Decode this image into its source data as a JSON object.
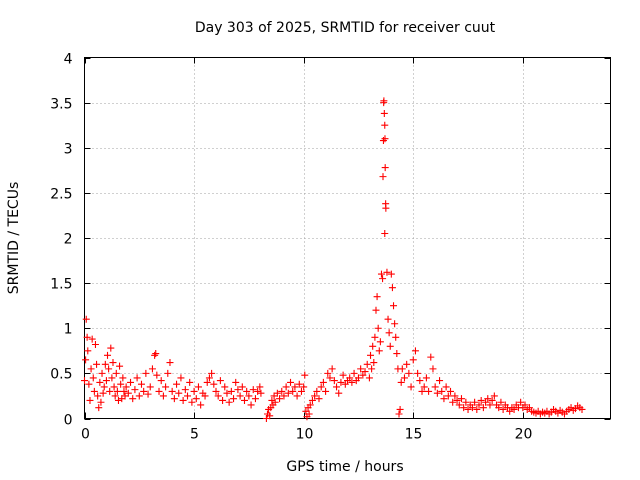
{
  "chart_data": {
    "type": "scatter",
    "title": "Day 303 of 2025, SRMTID for receiver cuut",
    "xlabel": "GPS time / hours",
    "ylabel": "SRMTID / TECUs",
    "xlim": [
      0,
      24
    ],
    "ylim": [
      0,
      4
    ],
    "xticks": [
      0,
      5,
      10,
      15,
      20
    ],
    "xtick_labels": [
      "0",
      "5",
      "10",
      "15",
      "20"
    ],
    "yticks": [
      0,
      0.5,
      1,
      1.5,
      2,
      2.5,
      3,
      3.5,
      4
    ],
    "ytick_labels": [
      "0",
      "0.5",
      "1",
      "1.5",
      "2",
      "2.5",
      "3",
      "3.5",
      "4"
    ],
    "grid": true,
    "marker": "plus",
    "color": "#ff0000",
    "series": [
      {
        "name": "SRMTID",
        "points": [
          [
            0.0,
            0.42
          ],
          [
            0.05,
            0.65
          ],
          [
            0.08,
            1.1
          ],
          [
            0.12,
            0.9
          ],
          [
            0.15,
            0.75
          ],
          [
            0.2,
            0.38
          ],
          [
            0.25,
            0.2
          ],
          [
            0.3,
            0.55
          ],
          [
            0.35,
            0.88
          ],
          [
            0.4,
            0.45
          ],
          [
            0.45,
            0.3
          ],
          [
            0.5,
            0.82
          ],
          [
            0.55,
            0.6
          ],
          [
            0.6,
            0.25
          ],
          [
            0.65,
            0.12
          ],
          [
            0.7,
            0.4
          ],
          [
            0.75,
            0.18
          ],
          [
            0.8,
            0.5
          ],
          [
            0.85,
            0.28
          ],
          [
            0.9,
            0.35
          ],
          [
            0.95,
            0.6
          ],
          [
            1.0,
            0.42
          ],
          [
            1.05,
            0.7
          ],
          [
            1.1,
            0.55
          ],
          [
            1.15,
            0.3
          ],
          [
            1.2,
            0.78
          ],
          [
            1.25,
            0.45
          ],
          [
            1.3,
            0.62
          ],
          [
            1.35,
            0.35
          ],
          [
            1.4,
            0.25
          ],
          [
            1.45,
            0.5
          ],
          [
            1.5,
            0.3
          ],
          [
            1.55,
            0.2
          ],
          [
            1.6,
            0.58
          ],
          [
            1.65,
            0.38
          ],
          [
            1.7,
            0.22
          ],
          [
            1.75,
            0.45
          ],
          [
            1.8,
            0.3
          ],
          [
            1.85,
            0.25
          ],
          [
            1.9,
            0.35
          ],
          [
            2.0,
            0.28
          ],
          [
            2.1,
            0.4
          ],
          [
            2.2,
            0.22
          ],
          [
            2.3,
            0.32
          ],
          [
            2.4,
            0.45
          ],
          [
            2.5,
            0.25
          ],
          [
            2.6,
            0.38
          ],
          [
            2.7,
            0.3
          ],
          [
            2.8,
            0.5
          ],
          [
            2.9,
            0.27
          ],
          [
            3.0,
            0.35
          ],
          [
            3.1,
            0.55
          ],
          [
            3.2,
            0.7
          ],
          [
            3.25,
            0.72
          ],
          [
            3.3,
            0.48
          ],
          [
            3.4,
            0.3
          ],
          [
            3.5,
            0.42
          ],
          [
            3.6,
            0.25
          ],
          [
            3.7,
            0.35
          ],
          [
            3.8,
            0.5
          ],
          [
            3.9,
            0.62
          ],
          [
            4.0,
            0.3
          ],
          [
            4.1,
            0.22
          ],
          [
            4.2,
            0.38
          ],
          [
            4.3,
            0.28
          ],
          [
            4.4,
            0.45
          ],
          [
            4.5,
            0.2
          ],
          [
            4.6,
            0.32
          ],
          [
            4.7,
            0.25
          ],
          [
            4.8,
            0.4
          ],
          [
            4.9,
            0.18
          ],
          [
            5.0,
            0.3
          ],
          [
            5.1,
            0.22
          ],
          [
            5.2,
            0.35
          ],
          [
            5.3,
            0.15
          ],
          [
            5.4,
            0.28
          ],
          [
            5.5,
            0.25
          ],
          [
            5.6,
            0.4
          ],
          [
            5.7,
            0.45
          ],
          [
            5.8,
            0.5
          ],
          [
            5.9,
            0.38
          ],
          [
            6.0,
            0.3
          ],
          [
            6.1,
            0.25
          ],
          [
            6.2,
            0.42
          ],
          [
            6.3,
            0.2
          ],
          [
            6.4,
            0.35
          ],
          [
            6.5,
            0.28
          ],
          [
            6.6,
            0.18
          ],
          [
            6.7,
            0.3
          ],
          [
            6.8,
            0.22
          ],
          [
            6.9,
            0.4
          ],
          [
            7.0,
            0.32
          ],
          [
            7.1,
            0.25
          ],
          [
            7.2,
            0.35
          ],
          [
            7.3,
            0.2
          ],
          [
            7.4,
            0.3
          ],
          [
            7.5,
            0.25
          ],
          [
            7.6,
            0.15
          ],
          [
            7.7,
            0.32
          ],
          [
            7.8,
            0.22
          ],
          [
            7.9,
            0.3
          ],
          [
            8.0,
            0.35
          ],
          [
            8.05,
            0.28
          ],
          [
            8.3,
            0.0
          ],
          [
            8.35,
            0.05
          ],
          [
            8.4,
            0.1
          ],
          [
            8.45,
            0.03
          ],
          [
            8.5,
            0.12
          ],
          [
            8.55,
            0.2
          ],
          [
            8.6,
            0.15
          ],
          [
            8.65,
            0.25
          ],
          [
            8.7,
            0.18
          ],
          [
            8.8,
            0.28
          ],
          [
            8.9,
            0.22
          ],
          [
            9.0,
            0.3
          ],
          [
            9.1,
            0.25
          ],
          [
            9.2,
            0.35
          ],
          [
            9.3,
            0.28
          ],
          [
            9.4,
            0.4
          ],
          [
            9.5,
            0.3
          ],
          [
            9.6,
            0.35
          ],
          [
            9.7,
            0.25
          ],
          [
            9.8,
            0.38
          ],
          [
            9.9,
            0.3
          ],
          [
            10.0,
            0.35
          ],
          [
            10.05,
            0.48
          ],
          [
            10.1,
            0.08
          ],
          [
            10.15,
            0.02
          ],
          [
            10.2,
            0.12
          ],
          [
            10.25,
            0.05
          ],
          [
            10.3,
            0.15
          ],
          [
            10.4,
            0.2
          ],
          [
            10.5,
            0.25
          ],
          [
            10.6,
            0.3
          ],
          [
            10.7,
            0.22
          ],
          [
            10.8,
            0.35
          ],
          [
            10.9,
            0.4
          ],
          [
            11.0,
            0.3
          ],
          [
            11.1,
            0.5
          ],
          [
            11.2,
            0.45
          ],
          [
            11.3,
            0.55
          ],
          [
            11.4,
            0.42
          ],
          [
            11.5,
            0.35
          ],
          [
            11.6,
            0.28
          ],
          [
            11.7,
            0.4
          ],
          [
            11.8,
            0.48
          ],
          [
            11.9,
            0.38
          ],
          [
            12.0,
            0.42
          ],
          [
            12.1,
            0.45
          ],
          [
            12.2,
            0.4
          ],
          [
            12.3,
            0.5
          ],
          [
            12.4,
            0.42
          ],
          [
            12.5,
            0.45
          ],
          [
            12.6,
            0.55
          ],
          [
            12.7,
            0.48
          ],
          [
            12.8,
            0.52
          ],
          [
            12.9,
            0.6
          ],
          [
            13.0,
            0.45
          ],
          [
            13.05,
            0.7
          ],
          [
            13.1,
            0.55
          ],
          [
            13.15,
            0.8
          ],
          [
            13.2,
            0.62
          ],
          [
            13.25,
            0.9
          ],
          [
            13.3,
            1.2
          ],
          [
            13.35,
            1.35
          ],
          [
            13.4,
            1.0
          ],
          [
            13.45,
            0.75
          ],
          [
            13.5,
            0.85
          ],
          [
            13.55,
            1.6
          ],
          [
            13.6,
            1.55
          ],
          [
            13.62,
            2.68
          ],
          [
            13.64,
            3.08
          ],
          [
            13.65,
            3.5
          ],
          [
            13.66,
            3.52
          ],
          [
            13.68,
            3.38
          ],
          [
            13.7,
            3.25
          ],
          [
            13.71,
            3.1
          ],
          [
            13.72,
            2.78
          ],
          [
            13.74,
            2.38
          ],
          [
            13.75,
            2.33
          ],
          [
            13.7,
            2.05
          ],
          [
            13.8,
            1.62
          ],
          [
            13.85,
            1.1
          ],
          [
            13.9,
            0.95
          ],
          [
            13.95,
            0.8
          ],
          [
            14.0,
            1.6
          ],
          [
            14.05,
            1.45
          ],
          [
            14.1,
            1.25
          ],
          [
            14.15,
            1.05
          ],
          [
            14.2,
            0.9
          ],
          [
            14.25,
            0.72
          ],
          [
            14.3,
            0.55
          ],
          [
            14.35,
            0.05
          ],
          [
            14.4,
            0.1
          ],
          [
            14.45,
            0.4
          ],
          [
            14.5,
            0.55
          ],
          [
            14.6,
            0.45
          ],
          [
            14.7,
            0.6
          ],
          [
            14.8,
            0.5
          ],
          [
            14.9,
            0.35
          ],
          [
            15.0,
            0.65
          ],
          [
            15.1,
            0.75
          ],
          [
            15.2,
            0.5
          ],
          [
            15.3,
            0.42
          ],
          [
            15.4,
            0.3
          ],
          [
            15.5,
            0.35
          ],
          [
            15.6,
            0.45
          ],
          [
            15.7,
            0.3
          ],
          [
            15.8,
            0.68
          ],
          [
            15.9,
            0.55
          ],
          [
            16.0,
            0.35
          ],
          [
            16.1,
            0.28
          ],
          [
            16.2,
            0.42
          ],
          [
            16.3,
            0.3
          ],
          [
            16.4,
            0.22
          ],
          [
            16.5,
            0.35
          ],
          [
            16.6,
            0.25
          ],
          [
            16.7,
            0.3
          ],
          [
            16.8,
            0.18
          ],
          [
            16.9,
            0.25
          ],
          [
            17.0,
            0.2
          ],
          [
            17.1,
            0.15
          ],
          [
            17.2,
            0.22
          ],
          [
            17.3,
            0.12
          ],
          [
            17.4,
            0.18
          ],
          [
            17.5,
            0.1
          ],
          [
            17.6,
            0.15
          ],
          [
            17.7,
            0.12
          ],
          [
            17.8,
            0.18
          ],
          [
            17.9,
            0.1
          ],
          [
            18.0,
            0.15
          ],
          [
            18.1,
            0.2
          ],
          [
            18.2,
            0.12
          ],
          [
            18.3,
            0.18
          ],
          [
            18.4,
            0.22
          ],
          [
            18.5,
            0.15
          ],
          [
            18.6,
            0.2
          ],
          [
            18.7,
            0.25
          ],
          [
            18.8,
            0.15
          ],
          [
            18.9,
            0.12
          ],
          [
            19.0,
            0.18
          ],
          [
            19.1,
            0.1
          ],
          [
            19.2,
            0.15
          ],
          [
            19.3,
            0.12
          ],
          [
            19.4,
            0.08
          ],
          [
            19.5,
            0.12
          ],
          [
            19.6,
            0.1
          ],
          [
            19.7,
            0.15
          ],
          [
            19.8,
            0.12
          ],
          [
            19.9,
            0.18
          ],
          [
            20.0,
            0.12
          ],
          [
            20.1,
            0.15
          ],
          [
            20.2,
            0.1
          ],
          [
            20.3,
            0.12
          ],
          [
            20.4,
            0.08
          ],
          [
            20.5,
            0.07
          ],
          [
            20.6,
            0.06
          ],
          [
            20.7,
            0.08
          ],
          [
            20.8,
            0.05
          ],
          [
            20.9,
            0.07
          ],
          [
            21.0,
            0.06
          ],
          [
            21.1,
            0.08
          ],
          [
            21.2,
            0.05
          ],
          [
            21.3,
            0.07
          ],
          [
            21.4,
            0.1
          ],
          [
            21.5,
            0.08
          ],
          [
            21.6,
            0.06
          ],
          [
            21.7,
            0.09
          ],
          [
            21.8,
            0.07
          ],
          [
            21.9,
            0.05
          ],
          [
            22.0,
            0.08
          ],
          [
            22.1,
            0.1
          ],
          [
            22.2,
            0.12
          ],
          [
            22.3,
            0.09
          ],
          [
            22.4,
            0.11
          ],
          [
            22.5,
            0.14
          ],
          [
            22.6,
            0.12
          ],
          [
            22.7,
            0.1
          ]
        ]
      }
    ]
  }
}
